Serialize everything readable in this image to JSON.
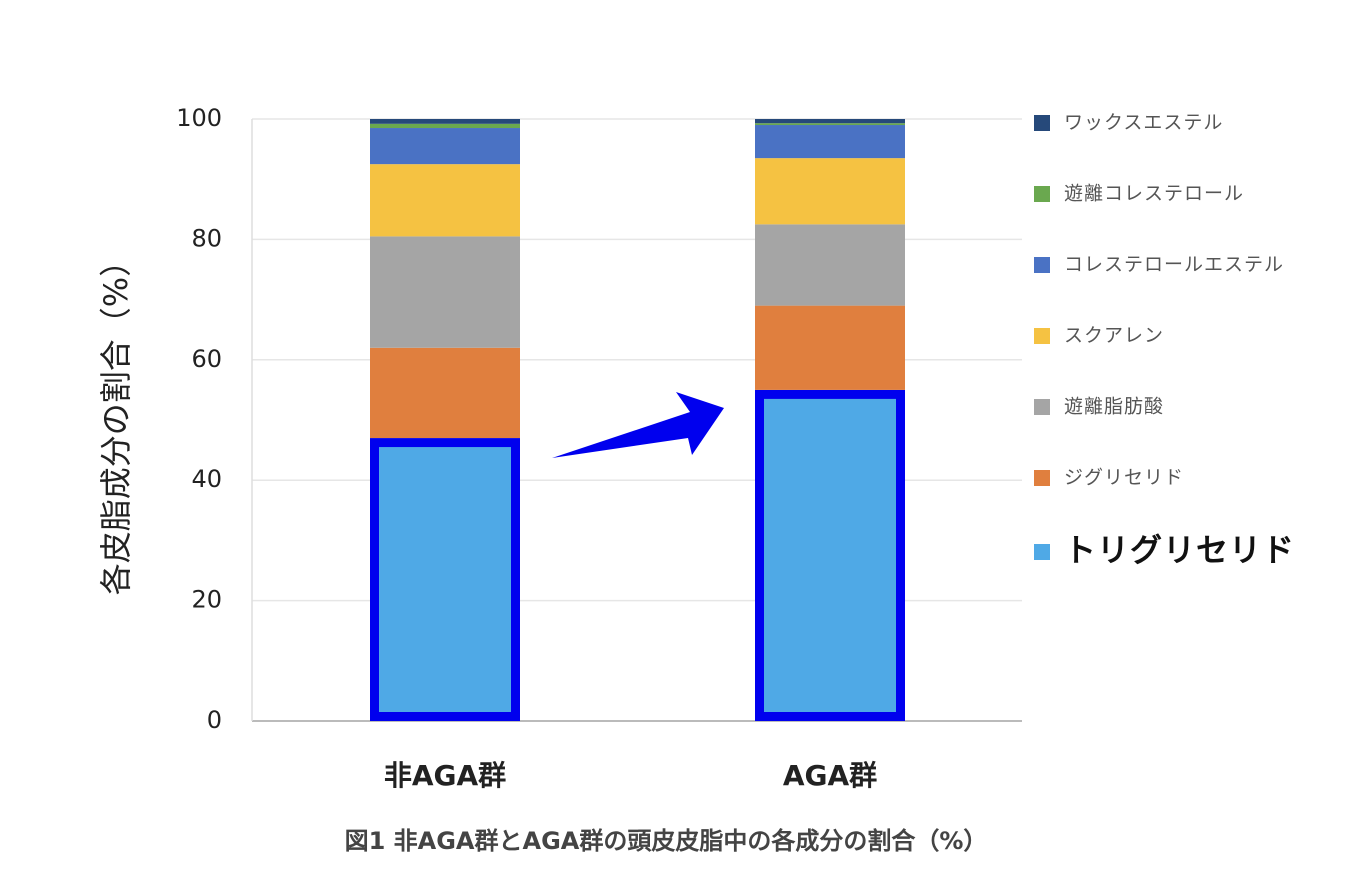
{
  "chart_data": {
    "type": "stacked_bar",
    "title": "図1 非AGA群とAGA群の頭皮皮脂中の各成分の割合（%）",
    "y_label": "各皮脂成分の割合（%）",
    "categories": [
      "非AGA群",
      "AGA群"
    ],
    "series": [
      {
        "name": "トリグリセリド",
        "color": "#4fa9e6",
        "outline_color": "#0000ee",
        "values": [
          47,
          55
        ]
      },
      {
        "name": "ジグリセリド",
        "color": "#e07f3e",
        "values": [
          15,
          14
        ]
      },
      {
        "name": "遊離脂肪酸",
        "color": "#a5a5a5",
        "values": [
          18.5,
          13.5
        ]
      },
      {
        "name": "スクアレン",
        "color": "#f5c242",
        "values": [
          12,
          11
        ]
      },
      {
        "name": "コレステロールエステル",
        "color": "#4a72c4",
        "values": [
          6,
          5.5
        ]
      },
      {
        "name": "遊離コレステロール",
        "color": "#6aa84f",
        "values": [
          0.7,
          0.3
        ]
      },
      {
        "name": "ワックスエステル",
        "color": "#26497a",
        "values": [
          0.8,
          0.7
        ]
      }
    ],
    "ylim": [
      0,
      100
    ],
    "yticks": [
      0,
      20,
      40,
      60,
      80,
      100
    ],
    "grid": true,
    "legend": "right"
  }
}
